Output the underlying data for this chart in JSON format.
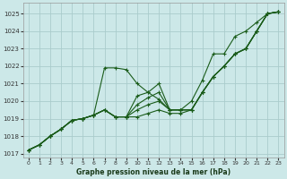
{
  "bg_color": "#cce8e8",
  "grid_color": "#aacccc",
  "line_color": "#1a5c1a",
  "title": "Graphe pression niveau de la mer (hPa)",
  "xlim": [
    -0.5,
    23.5
  ],
  "ylim": [
    1016.8,
    1025.6
  ],
  "yticks": [
    1017,
    1018,
    1019,
    1020,
    1021,
    1022,
    1023,
    1024,
    1025
  ],
  "xticks": [
    0,
    1,
    2,
    3,
    4,
    5,
    6,
    7,
    8,
    9,
    10,
    11,
    12,
    13,
    14,
    15,
    16,
    17,
    18,
    19,
    20,
    21,
    22,
    23
  ],
  "series": [
    [
      1017.2,
      1017.5,
      1018.0,
      1018.4,
      1018.9,
      1019.0,
      1019.2,
      1021.9,
      1021.9,
      1021.8,
      1021.0,
      1020.5,
      1020.1,
      1019.5,
      1019.5,
      1019.5,
      1020.5,
      1021.4,
      1022.0,
      1022.7,
      1023.0,
      1024.0,
      1025.0,
      1025.1
    ],
    [
      1017.2,
      1017.5,
      1018.0,
      1018.4,
      1018.9,
      1019.0,
      1019.2,
      1019.5,
      1019.1,
      1019.1,
      1019.1,
      1019.3,
      1019.5,
      1019.3,
      1019.3,
      1019.5,
      1020.5,
      1021.4,
      1022.0,
      1022.7,
      1023.0,
      1024.0,
      1025.0,
      1025.1
    ],
    [
      1017.2,
      1017.5,
      1018.0,
      1018.4,
      1018.9,
      1019.0,
      1019.2,
      1019.5,
      1019.1,
      1019.1,
      1019.5,
      1019.8,
      1020.0,
      1019.5,
      1019.5,
      1019.5,
      1020.5,
      1021.4,
      1022.0,
      1022.7,
      1023.0,
      1024.0,
      1025.0,
      1025.1
    ],
    [
      1017.2,
      1017.5,
      1018.0,
      1018.4,
      1018.9,
      1019.0,
      1019.2,
      1019.5,
      1019.1,
      1019.1,
      1019.8,
      1020.2,
      1020.5,
      1019.5,
      1019.5,
      1019.5,
      1020.5,
      1021.4,
      1022.0,
      1022.7,
      1023.0,
      1024.0,
      1025.0,
      1025.1
    ],
    [
      1017.2,
      1017.5,
      1018.0,
      1018.4,
      1018.9,
      1019.0,
      1019.2,
      1019.5,
      1019.1,
      1019.1,
      1020.3,
      1020.5,
      1021.0,
      1019.5,
      1019.5,
      1020.0,
      1021.2,
      1022.7,
      1022.7,
      1023.7,
      1024.0,
      1024.5,
      1025.0,
      1025.1
    ]
  ]
}
